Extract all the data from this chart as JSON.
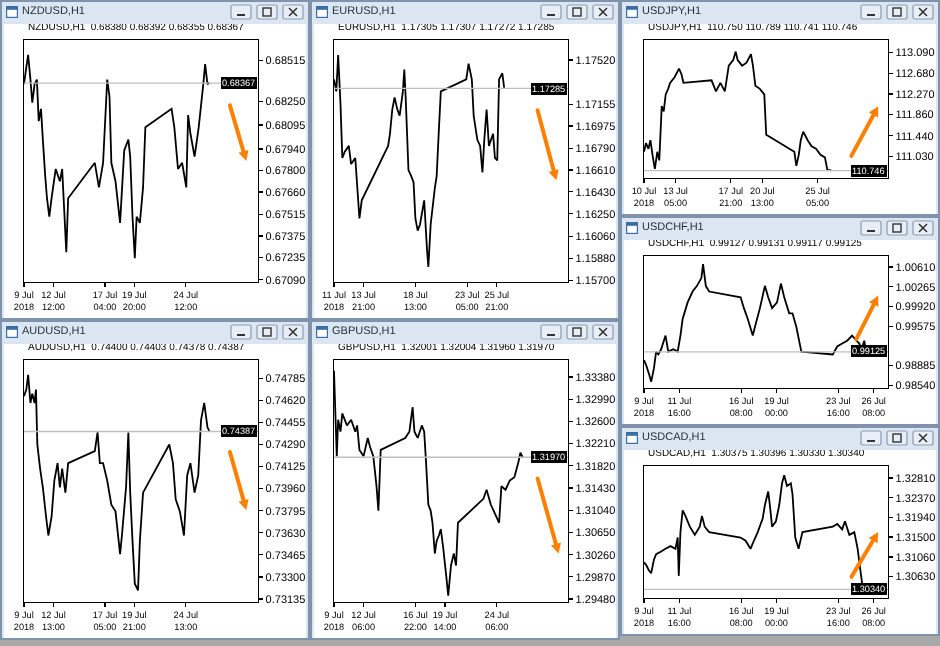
{
  "chart_data": [
    {
      "type": "line",
      "title": "NZDUSD,H1",
      "subtitle": "NZDUSD,H1  0.68380 0.68392 0.68355 0.68367",
      "x": [
        "2018-07-09T20:00",
        "2018-07-10T01:00",
        "2018-07-10T05:00",
        "2018-07-10T10:00",
        "2018-07-10T14:00",
        "2018-07-10T19:00",
        "2018-07-11T00:00",
        "2018-07-11T04:00",
        "2018-07-11T09:00",
        "2018-07-11T13:00",
        "2018-07-11T18:00",
        "2018-07-11T22:00",
        "2018-07-12T03:00",
        "2018-07-12T08:00",
        "2018-07-12T17:00",
        "2018-07-13T02:00",
        "2018-07-13T07:00",
        "2018-07-13T16:00",
        "2018-07-13T20:00",
        "2018-07-16T06:00",
        "2018-07-16T15:00",
        "2018-07-17T00:00",
        "2018-07-17T09:00",
        "2018-07-17T14:00",
        "2018-07-17T18:00",
        "2018-07-18T03:00",
        "2018-07-18T13:00",
        "2018-07-18T22:00",
        "2018-07-19T07:00",
        "2018-07-19T11:00",
        "2018-07-19T16:00",
        "2018-07-19T21:00",
        "2018-07-20T01:00",
        "2018-07-20T08:00",
        "2018-07-20T15:00",
        "2018-07-20T20:00",
        "2018-07-23T05:00",
        "2018-07-23T11:00",
        "2018-07-23T19:00",
        "2018-07-24T04:00",
        "2018-07-24T13:00",
        "2018-07-24T17:00",
        "2018-07-24T22:00",
        "2018-07-25T07:00",
        "2018-07-25T16:00",
        "2018-07-26T02:00",
        "2018-07-26T06:00",
        "2018-07-26T11:00",
        "2018-07-26T15:00"
      ],
      "series": [
        {
          "color": "#000000",
          "values": [
            0.6836,
            0.6847,
            0.6855,
            0.6839,
            0.6824,
            0.6836,
            0.6839,
            0.6812,
            0.682,
            0.68,
            0.6777,
            0.6762,
            0.675,
            0.6762,
            0.6781,
            0.6773,
            0.6781,
            0.6727,
            0.6762,
            0.6785,
            0.6769,
            0.6785,
            0.6839,
            0.6828,
            0.6785,
            0.6773,
            0.6746,
            0.6793,
            0.68,
            0.6789,
            0.675,
            0.6723,
            0.675,
            0.6746,
            0.6769,
            0.6808,
            0.682,
            0.6808,
            0.6781,
            0.6785,
            0.6769,
            0.6816,
            0.6804,
            0.6789,
            0.6808,
            0.6836,
            0.6849,
            0.6836,
            0.6837
          ]
        }
      ],
      "xlim": [
        "2018-07-09T20:00",
        "2018-07-31T01:00"
      ],
      "xticks": [
        {
          "value": "2018-07-09T20:00",
          "label": "9 Jul 2018"
        },
        {
          "value": "2018-07-12T12:00",
          "label": "12 Jul 12:00"
        },
        {
          "value": "2018-07-17T04:00",
          "label": "17 Jul 04:00"
        },
        {
          "value": "2018-07-19T20:00",
          "label": "19 Jul 20:00"
        },
        {
          "value": "2018-07-24T12:00",
          "label": "24 Jul 12:00"
        }
      ],
      "ylim": [
        0.67076,
        0.68647
      ],
      "yticks": [
        {
          "value": 0.68515,
          "label": "0.68515"
        },
        {
          "value": 0.6825,
          "label": "0.68250"
        },
        {
          "value": 0.68095,
          "label": "0.68095"
        },
        {
          "value": 0.6794,
          "label": "0.67940"
        },
        {
          "value": 0.678,
          "label": "0.67800"
        },
        {
          "value": 0.6766,
          "label": "0.67660"
        },
        {
          "value": 0.67515,
          "label": "0.67515"
        },
        {
          "value": 0.67375,
          "label": "0.67375"
        },
        {
          "value": 0.67235,
          "label": "0.67235"
        },
        {
          "value": 0.6709,
          "label": "0.67090"
        }
      ],
      "ref_lines": [
        {
          "axis": "y",
          "value": 0.68367,
          "label": "0.68367",
          "color": "#c0c0c0"
        }
      ]
    },
    {
      "type": "line",
      "title": "EURUSD,H1",
      "subtitle": "EURUSD,H1  1.17305 1.17307 1.17272 1.17285",
      "x": [
        "2018-07-11T05:00",
        "2018-07-11T10:00",
        "2018-07-11T14:00",
        "2018-07-11T19:00",
        "2018-07-11T23:00",
        "2018-07-12T04:00",
        "2018-07-12T13:00",
        "2018-07-12T18:00",
        "2018-07-13T03:00",
        "2018-07-13T12:00",
        "2018-07-13T17:00",
        "2018-07-16T02:00",
        "2018-07-16T06:00",
        "2018-07-16T11:00",
        "2018-07-16T16:00",
        "2018-07-16T22:00",
        "2018-07-17T03:00",
        "2018-07-17T10:00",
        "2018-07-17T13:00",
        "2018-07-17T16:00",
        "2018-07-17T22:00",
        "2018-07-18T04:00",
        "2018-07-18T09:00",
        "2018-07-18T13:00",
        "2018-07-18T18:00",
        "2018-07-18T23:00",
        "2018-07-19T08:00",
        "2018-07-19T14:00",
        "2018-07-19T17:00",
        "2018-07-19T22:00",
        "2018-07-20T07:00",
        "2018-07-20T11:00",
        "2018-07-20T16:00",
        "2018-07-20T20:00",
        "2018-07-23T03:00",
        "2018-07-23T08:00",
        "2018-07-23T15:00",
        "2018-07-23T19:00",
        "2018-07-24T03:00",
        "2018-07-24T09:00",
        "2018-07-24T14:00",
        "2018-07-24T18:00",
        "2018-07-24T23:00",
        "2018-07-25T04:00",
        "2018-07-25T13:00",
        "2018-07-25T17:00",
        "2018-07-25T22:00",
        "2018-07-26T02:00",
        "2018-07-26T09:00",
        "2018-07-26T13:00"
      ],
      "series": [
        {
          "color": "#000000",
          "values": [
            1.1736,
            1.1726,
            1.1756,
            1.1716,
            1.1671,
            1.1676,
            1.1681,
            1.1666,
            1.1671,
            1.1621,
            1.1636,
            1.1681,
            1.1691,
            1.1711,
            1.1721,
            1.1711,
            1.1706,
            1.1726,
            1.1744,
            1.1721,
            1.1661,
            1.1656,
            1.1651,
            1.1621,
            1.1611,
            1.1616,
            1.1636,
            1.1596,
            1.1581,
            1.1616,
            1.1646,
            1.1656,
            1.1696,
            1.1726,
            1.1736,
            1.1749,
            1.1736,
            1.1706,
            1.1686,
            1.1681,
            1.1659,
            1.1686,
            1.1711,
            1.1681,
            1.1691,
            1.1671,
            1.1669,
            1.1736,
            1.1741,
            1.1729
          ]
        }
      ],
      "xlim": [
        "2018-07-11T05:00",
        "2018-08-01T07:00"
      ],
      "xticks": [
        {
          "value": "2018-07-11T05:00",
          "label": "11 Jul 2018"
        },
        {
          "value": "2018-07-13T21:00",
          "label": "13 Jul 21:00"
        },
        {
          "value": "2018-07-18T13:00",
          "label": "18 Jul 13:00"
        },
        {
          "value": "2018-07-23T05:00",
          "label": "23 Jul 05:00"
        },
        {
          "value": "2018-07-25T21:00",
          "label": "25 Jul 21:00"
        }
      ],
      "ylim": [
        1.15685,
        1.17685
      ],
      "yticks": [
        {
          "value": 1.1752,
          "label": "1.17520"
        },
        {
          "value": 1.17155,
          "label": "1.17155"
        },
        {
          "value": 1.16975,
          "label": "1.16975"
        },
        {
          "value": 1.1679,
          "label": "1.16790"
        },
        {
          "value": 1.1661,
          "label": "1.16610"
        },
        {
          "value": 1.1643,
          "label": "1.16430"
        },
        {
          "value": 1.1625,
          "label": "1.16250"
        },
        {
          "value": 1.1606,
          "label": "1.16060"
        },
        {
          "value": 1.1588,
          "label": "1.15880"
        },
        {
          "value": 1.157,
          "label": "1.15700"
        }
      ],
      "ref_lines": [
        {
          "axis": "y",
          "value": 1.17285,
          "label": "1.17285",
          "color": "#c0c0c0"
        }
      ]
    },
    {
      "type": "line",
      "title": "USDJPY,H1",
      "subtitle": "USDJPY,H1  110.750 110.789 110.741 110.746",
      "x": [
        "2018-07-10T13:00",
        "2018-07-10T17:00",
        "2018-07-10T22:00",
        "2018-07-11T02:00",
        "2018-07-11T07:00",
        "2018-07-11T11:00",
        "2018-07-11T16:00",
        "2018-07-11T20:00",
        "2018-07-12T01:00",
        "2018-07-12T05:00",
        "2018-07-12T09:00",
        "2018-07-12T14:00",
        "2018-07-12T18:00",
        "2018-07-13T03:00",
        "2018-07-13T12:00",
        "2018-07-13T17:00",
        "2018-07-13T21:00",
        "2018-07-16T06:00",
        "2018-07-16T15:00",
        "2018-07-17T00:00",
        "2018-07-17T09:00",
        "2018-07-17T17:00",
        "2018-07-18T02:00",
        "2018-07-18T07:00",
        "2018-07-18T11:00",
        "2018-07-18T20:00",
        "2018-07-19T05:00",
        "2018-07-19T14:00",
        "2018-07-19T18:00",
        "2018-07-19T23:00",
        "2018-07-20T08:00",
        "2018-07-20T17:00",
        "2018-07-20T21:00",
        "2018-07-23T06:00",
        "2018-07-23T10:00",
        "2018-07-23T15:00",
        "2018-07-23T19:00",
        "2018-07-24T00:00",
        "2018-07-24T09:00",
        "2018-07-24T17:00",
        "2018-07-25T02:00",
        "2018-07-25T11:00",
        "2018-07-25T20:00",
        "2018-07-26T01:00",
        "2018-07-26T09:00"
      ],
      "series": [
        {
          "color": "#000000",
          "values": [
            111.12,
            111.29,
            111.18,
            111.35,
            111.01,
            110.78,
            111.12,
            110.95,
            112.03,
            111.92,
            112.26,
            112.37,
            112.49,
            112.6,
            112.77,
            112.66,
            112.49,
            112.54,
            112.32,
            112.49,
            112.32,
            112.83,
            112.94,
            113.11,
            112.94,
            112.83,
            112.89,
            113.06,
            112.83,
            112.43,
            112.37,
            112.26,
            111.46,
            111.12,
            110.84,
            111.06,
            111.35,
            111.52,
            111.35,
            111.23,
            111.18,
            111.06,
            111.01,
            110.76,
            110.75
          ]
        }
      ],
      "xlim": [
        "2018-07-10T13:00",
        "2018-07-31T04:00"
      ],
      "xticks": [
        {
          "value": "2018-07-10T13:00",
          "label": "10 Jul 2018"
        },
        {
          "value": "2018-07-13T05:00",
          "label": "13 Jul 05:00"
        },
        {
          "value": "2018-07-17T21:00",
          "label": "17 Jul 21:00"
        },
        {
          "value": "2018-07-20T13:00",
          "label": "20 Jul 13:00"
        },
        {
          "value": "2018-07-25T05:00",
          "label": "25 Jul 05:00"
        }
      ],
      "ylim": [
        110.6,
        113.34
      ],
      "yticks": [
        {
          "value": 113.09,
          "label": "113.090"
        },
        {
          "value": 112.68,
          "label": "112.680"
        },
        {
          "value": 112.27,
          "label": "112.270"
        },
        {
          "value": 111.86,
          "label": "111.860"
        },
        {
          "value": 111.44,
          "label": "111.440"
        },
        {
          "value": 111.03,
          "label": "111.030"
        }
      ],
      "ref_lines": [
        {
          "axis": "y",
          "value": 110.746,
          "label": "110.746",
          "color": "#c0c0c0"
        }
      ]
    },
    {
      "type": "line",
      "title": "USDCHF,H1",
      "subtitle": "USDCHF,H1  0.99127 0.99131 0.99117 0.99125",
      "x": [
        "2018-07-09T00:00",
        "2018-07-09T04:00",
        "2018-07-09T09:00",
        "2018-07-09T13:00",
        "2018-07-09T18:00",
        "2018-07-09T22:00",
        "2018-07-10T02:00",
        "2018-07-10T07:00",
        "2018-07-10T15:00",
        "2018-07-10T20:00",
        "2018-07-11T05:00",
        "2018-07-11T13:00",
        "2018-07-11T18:00",
        "2018-07-11T22:00",
        "2018-07-12T07:00",
        "2018-07-12T16:00",
        "2018-07-13T00:00",
        "2018-07-13T08:00",
        "2018-07-13T11:00",
        "2018-07-13T16:00",
        "2018-07-13T22:00",
        "2018-07-16T07:00",
        "2018-07-16T13:00",
        "2018-07-16T20:00",
        "2018-07-17T05:00",
        "2018-07-17T10:00",
        "2018-07-17T18:00",
        "2018-07-18T03:00",
        "2018-07-18T09:00",
        "2018-07-18T16:00",
        "2018-07-19T01:00",
        "2018-07-19T08:00",
        "2018-07-19T14:00",
        "2018-07-19T23:00",
        "2018-07-20T05:00",
        "2018-07-20T12:00",
        "2018-07-20T21:00",
        "2018-07-23T06:00",
        "2018-07-23T14:00",
        "2018-07-23T23:00",
        "2018-07-24T08:00",
        "2018-07-24T17:00",
        "2018-07-25T01:00",
        "2018-07-25T06:00",
        "2018-07-25T10:00",
        "2018-07-25T15:00",
        "2018-07-25T19:00",
        "2018-07-25T23:00"
      ],
      "series": [
        {
          "color": "#000000",
          "values": [
            0.9898,
            0.9889,
            0.9874,
            0.986,
            0.9884,
            0.9913,
            0.9908,
            0.9917,
            0.9941,
            0.9913,
            0.9917,
            0.9913,
            0.9941,
            0.997,
            0.9999,
            1.0018,
            1.0028,
            1.0042,
            1.0066,
            1.0028,
            1.0018,
            1.0008,
            0.9989,
            0.997,
            0.9941,
            0.996,
            0.9989,
            1.0028,
            1.0008,
            0.9989,
            0.9999,
            1.0032,
            1.0008,
            0.998,
            0.998,
            0.9956,
            0.9913,
            0.9908,
            0.9922,
            0.9927,
            0.9932,
            0.9941,
            0.9932,
            0.9927,
            0.9917,
            0.9932,
            0.9908,
            0.9913
          ]
        }
      ],
      "xlim": [
        "2018-07-09T00:00",
        "2018-07-27T10:00"
      ],
      "xticks": [
        {
          "value": "2018-07-09T00:00",
          "label": "9 Jul 2018"
        },
        {
          "value": "2018-07-11T16:00",
          "label": "11 Jul 16:00"
        },
        {
          "value": "2018-07-16T08:00",
          "label": "16 Jul 08:00"
        },
        {
          "value": "2018-07-19T00:00",
          "label": "19 Jul 00:00"
        },
        {
          "value": "2018-07-23T16:00",
          "label": "23 Jul 16:00"
        },
        {
          "value": "2018-07-26T08:00",
          "label": "26 Jul 08:00"
        }
      ],
      "ylim": [
        0.98493,
        1.00802
      ],
      "yticks": [
        {
          "value": 1.0061,
          "label": "1.00610"
        },
        {
          "value": 1.00265,
          "label": "1.00265"
        },
        {
          "value": 0.9992,
          "label": "0.99920"
        },
        {
          "value": 0.99575,
          "label": "0.99575"
        },
        {
          "value": 0.98885,
          "label": "0.98885"
        },
        {
          "value": 0.9854,
          "label": "0.98540"
        }
      ],
      "ref_lines": [
        {
          "axis": "y",
          "value": 0.99125,
          "label": "0.99125",
          "color": "#c0c0c0"
        }
      ]
    },
    {
      "type": "line",
      "title": "AUDUSD,H1",
      "subtitle": "AUDUSD,H1  0.74400 0.74403 0.74378 0.74387",
      "x": [
        "2018-07-09T21:00",
        "2018-07-10T02:00",
        "2018-07-10T06:00",
        "2018-07-10T11:00",
        "2018-07-10T15:00",
        "2018-07-10T20:00",
        "2018-07-10T23:00",
        "2018-07-11T02:00",
        "2018-07-11T08:00",
        "2018-07-11T14:00",
        "2018-07-11T21:00",
        "2018-07-12T02:00",
        "2018-07-12T09:00",
        "2018-07-12T15:00",
        "2018-07-12T22:00",
        "2018-07-13T03:00",
        "2018-07-13T08:00",
        "2018-07-13T15:00",
        "2018-07-13T21:00",
        "2018-07-16T07:00",
        "2018-07-16T13:00",
        "2018-07-16T18:00",
        "2018-07-17T01:00",
        "2018-07-17T10:00",
        "2018-07-17T19:00",
        "2018-07-18T04:00",
        "2018-07-18T14:00",
        "2018-07-18T18:00",
        "2018-07-19T03:00",
        "2018-07-19T08:00",
        "2018-07-19T12:00",
        "2018-07-19T17:00",
        "2018-07-19T22:00",
        "2018-07-20T05:00",
        "2018-07-20T09:00",
        "2018-07-20T16:00",
        "2018-07-23T01:00",
        "2018-07-23T09:00",
        "2018-07-23T15:00",
        "2018-07-24T00:00",
        "2018-07-24T09:00",
        "2018-07-24T16:00",
        "2018-07-24T23:00",
        "2018-07-25T08:00",
        "2018-07-25T16:00",
        "2018-07-25T22:00",
        "2018-07-26T05:00",
        "2018-07-26T12:00",
        "2018-07-26T16:00"
      ],
      "series": [
        {
          "color": "#000000",
          "values": [
            0.7465,
            0.747,
            0.7481,
            0.746,
            0.7467,
            0.746,
            0.747,
            0.7429,
            0.7411,
            0.7397,
            0.7375,
            0.7361,
            0.7375,
            0.7402,
            0.7415,
            0.7397,
            0.7411,
            0.7393,
            0.7415,
            0.7424,
            0.7438,
            0.7415,
            0.7415,
            0.7402,
            0.7384,
            0.7379,
            0.7347,
            0.7361,
            0.7397,
            0.7438,
            0.7393,
            0.7357,
            0.7325,
            0.732,
            0.7357,
            0.7393,
            0.7429,
            0.7415,
            0.7388,
            0.7379,
            0.7361,
            0.7406,
            0.7415,
            0.7393,
            0.7406,
            0.7447,
            0.746,
            0.7442,
            0.7439
          ]
        }
      ],
      "xlim": [
        "2018-07-09T21:00",
        "2018-07-31T02:00"
      ],
      "xticks": [
        {
          "value": "2018-07-09T21:00",
          "label": "9 Jul 2018"
        },
        {
          "value": "2018-07-12T13:00",
          "label": "12 Jul 13:00"
        },
        {
          "value": "2018-07-17T05:00",
          "label": "17 Jul 05:00"
        },
        {
          "value": "2018-07-19T21:00",
          "label": "19 Jul 21:00"
        },
        {
          "value": "2018-07-24T13:00",
          "label": "24 Jul 13:00"
        }
      ],
      "ylim": [
        0.73113,
        0.74921
      ],
      "yticks": [
        {
          "value": 0.74785,
          "label": "0.74785"
        },
        {
          "value": 0.7462,
          "label": "0.74620"
        },
        {
          "value": 0.74455,
          "label": "0.74455"
        },
        {
          "value": 0.7429,
          "label": "0.74290"
        },
        {
          "value": 0.74125,
          "label": "0.74125"
        },
        {
          "value": 0.7396,
          "label": "0.73960"
        },
        {
          "value": 0.73795,
          "label": "0.73795"
        },
        {
          "value": 0.7363,
          "label": "0.73630"
        },
        {
          "value": 0.73465,
          "label": "0.73465"
        },
        {
          "value": 0.733,
          "label": "0.73300"
        },
        {
          "value": 0.73135,
          "label": "0.73135"
        }
      ],
      "ref_lines": [
        {
          "axis": "y",
          "value": 0.74387,
          "label": "0.74387",
          "color": "#c0c0c0"
        }
      ]
    },
    {
      "type": "line",
      "title": "GBPUSD,H1",
      "subtitle": "GBPUSD,H1  1.32001 1.32004 1.31960 1.31970",
      "x": [
        "2018-07-09T14:00",
        "2018-07-09T17:00",
        "2018-07-09T20:00",
        "2018-07-09T23:00",
        "2018-07-10T04:00",
        "2018-07-10T08:00",
        "2018-07-10T18:00",
        "2018-07-11T03:00",
        "2018-07-11T12:00",
        "2018-07-11T16:00",
        "2018-07-11T21:00",
        "2018-07-12T06:00",
        "2018-07-12T15:00",
        "2018-07-12T20:00",
        "2018-07-13T03:00",
        "2018-07-13T10:00",
        "2018-07-13T14:00",
        "2018-07-13T19:00",
        "2018-07-16T00:00",
        "2018-07-16T09:00",
        "2018-07-16T16:00",
        "2018-07-16T20:00",
        "2018-07-17T03:00",
        "2018-07-17T12:00",
        "2018-07-17T17:00",
        "2018-07-17T21:00",
        "2018-07-18T02:00",
        "2018-07-18T07:00",
        "2018-07-18T11:00",
        "2018-07-18T16:00",
        "2018-07-18T20:00",
        "2018-07-19T01:00",
        "2018-07-19T05:00",
        "2018-07-19T10:00",
        "2018-07-19T17:00",
        "2018-07-19T21:00",
        "2018-07-20T03:00",
        "2018-07-20T09:00",
        "2018-07-20T14:00",
        "2018-07-20T18:00",
        "2018-07-23T01:00",
        "2018-07-23T08:00",
        "2018-07-23T17:00",
        "2018-07-24T02:00",
        "2018-07-24T11:00",
        "2018-07-24T16:00",
        "2018-07-25T01:00",
        "2018-07-25T10:00",
        "2018-07-25T20:00",
        "2018-07-26T05:00",
        "2018-07-26T09:00",
        "2018-07-26T14:00"
      ],
      "series": [
        {
          "color": "#000000",
          "values": [
            1.3349,
            1.3274,
            1.3199,
            1.3263,
            1.3242,
            1.3274,
            1.3253,
            1.3263,
            1.3242,
            1.3253,
            1.321,
            1.3199,
            1.3231,
            1.3215,
            1.3199,
            1.3146,
            1.3103,
            1.321,
            1.3231,
            1.3242,
            1.3285,
            1.3242,
            1.3231,
            1.3253,
            1.3242,
            1.3189,
            1.3114,
            1.3103,
            1.3082,
            1.3028,
            1.305,
            1.306,
            1.3071,
            1.3039,
            1.2986,
            1.2954,
            1.3007,
            1.3028,
            1.3007,
            1.3082,
            1.3124,
            1.314,
            1.3114,
            1.3098,
            1.3082,
            1.3146,
            1.314,
            1.3156,
            1.3162,
            1.3189,
            1.3205,
            1.3197
          ]
        }
      ],
      "xlim": [
        "2018-07-09T14:00",
        "2018-07-30T16:00"
      ],
      "xticks": [
        {
          "value": "2018-07-09T14:00",
          "label": "9 Jul 2018"
        },
        {
          "value": "2018-07-12T06:00",
          "label": "12 Jul 06:00"
        },
        {
          "value": "2018-07-16T22:00",
          "label": "16 Jul 22:00"
        },
        {
          "value": "2018-07-19T14:00",
          "label": "19 Jul 14:00"
        },
        {
          "value": "2018-07-24T06:00",
          "label": "24 Jul 06:00"
        }
      ],
      "ylim": [
        1.29428,
        1.33679
      ],
      "yticks": [
        {
          "value": 1.3338,
          "label": "1.33380"
        },
        {
          "value": 1.3299,
          "label": "1.32990"
        },
        {
          "value": 1.326,
          "label": "1.32600"
        },
        {
          "value": 1.3221,
          "label": "1.32210"
        },
        {
          "value": 1.3182,
          "label": "1.31820"
        },
        {
          "value": 1.3143,
          "label": "1.31430"
        },
        {
          "value": 1.3104,
          "label": "1.31040"
        },
        {
          "value": 1.3065,
          "label": "1.30650"
        },
        {
          "value": 1.3026,
          "label": "1.30260"
        },
        {
          "value": 1.2987,
          "label": "1.29870"
        },
        {
          "value": 1.2948,
          "label": "1.29480"
        }
      ],
      "ref_lines": [
        {
          "axis": "y",
          "value": 1.3197,
          "label": "1.31970",
          "color": "#c0c0c0"
        }
      ]
    },
    {
      "type": "line",
      "title": "USDCAD,H1",
      "subtitle": "USDCAD,H1  1.30375 1.30396 1.30330 1.30340",
      "x": [
        "2018-07-09T00:00",
        "2018-07-09T04:00",
        "2018-07-09T09:00",
        "2018-07-09T13:00",
        "2018-07-09T18:00",
        "2018-07-09T22:00",
        "2018-07-10T07:00",
        "2018-07-10T15:00",
        "2018-07-11T00:00",
        "2018-07-11T09:00",
        "2018-07-11T13:00",
        "2018-07-11T15:00",
        "2018-07-11T18:00",
        "2018-07-11T22:00",
        "2018-07-12T03:00",
        "2018-07-12T11:00",
        "2018-07-12T20:00",
        "2018-07-13T05:00",
        "2018-07-13T09:00",
        "2018-07-13T14:00",
        "2018-07-13T22:00",
        "2018-07-16T07:00",
        "2018-07-16T16:00",
        "2018-07-17T01:00",
        "2018-07-17T05:00",
        "2018-07-17T14:00",
        "2018-07-17T23:00",
        "2018-07-18T03:00",
        "2018-07-18T09:00",
        "2018-07-18T12:00",
        "2018-07-18T16:00",
        "2018-07-18T23:00",
        "2018-07-19T05:00",
        "2018-07-19T10:00",
        "2018-07-19T14:00",
        "2018-07-19T19:00",
        "2018-07-20T02:00",
        "2018-07-20T05:00",
        "2018-07-20T10:00",
        "2018-07-20T16:00",
        "2018-07-20T23:00",
        "2018-07-23T06:00",
        "2018-07-23T14:00",
        "2018-07-23T23:00",
        "2018-07-24T04:00",
        "2018-07-24T12:00",
        "2018-07-24T21:00",
        "2018-07-25T03:00",
        "2018-07-25T08:00",
        "2018-07-25T13:00",
        "2018-07-25T17:00",
        "2018-07-25T22:00"
      ],
      "series": [
        {
          "color": "#000000",
          "values": [
            1.3094,
            1.3088,
            1.3076,
            1.307,
            1.31,
            1.3112,
            1.3118,
            1.3124,
            1.313,
            1.3124,
            1.3149,
            1.3064,
            1.3161,
            1.3209,
            1.3197,
            1.3173,
            1.3155,
            1.3173,
            1.3197,
            1.3173,
            1.3161,
            1.3149,
            1.3142,
            1.3124,
            1.3136,
            1.3161,
            1.3191,
            1.3221,
            1.3251,
            1.3221,
            1.3173,
            1.3185,
            1.3221,
            1.3269,
            1.3287,
            1.3263,
            1.3269,
            1.3245,
            1.3149,
            1.3124,
            1.3161,
            1.3173,
            1.3179,
            1.3167,
            1.3185,
            1.3155,
            1.3161,
            1.3124,
            1.3076,
            1.303,
            1.304,
            1.3034
          ]
        }
      ],
      "xlim": [
        "2018-07-09T00:00",
        "2018-07-27T10:00"
      ],
      "xticks": [
        {
          "value": "2018-07-09T00:00",
          "label": "9 Jul 2018"
        },
        {
          "value": "2018-07-11T16:00",
          "label": "11 Jul 16:00"
        },
        {
          "value": "2018-07-16T08:00",
          "label": "16 Jul 08:00"
        },
        {
          "value": "2018-07-19T00:00",
          "label": "19 Jul 00:00"
        },
        {
          "value": "2018-07-23T16:00",
          "label": "23 Jul 16:00"
        },
        {
          "value": "2018-07-26T08:00",
          "label": "26 Jul 08:00"
        }
      ],
      "ylim": [
        1.3015,
        1.33075
      ],
      "yticks": [
        {
          "value": 1.3281,
          "label": "1.32810"
        },
        {
          "value": 1.3237,
          "label": "1.32370"
        },
        {
          "value": 1.3194,
          "label": "1.31940"
        },
        {
          "value": 1.315,
          "label": "1.31500"
        },
        {
          "value": 1.3106,
          "label": "1.31060"
        },
        {
          "value": 1.3063,
          "label": "1.30630"
        }
      ],
      "ref_lines": [
        {
          "axis": "y",
          "value": 1.3034,
          "label": "1.30340",
          "color": "#c0c0c0"
        }
      ]
    }
  ]
}
